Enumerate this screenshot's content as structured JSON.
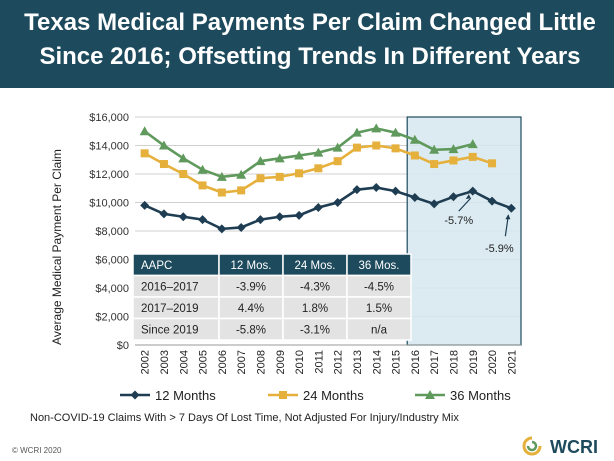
{
  "header": {
    "title_line1": "Texas Medical Payments Per Claim Changed Little",
    "title_line2": "Since 2016; Offsetting Trends In Different Years"
  },
  "colors": {
    "header_bg": "#1d4a5c",
    "series_12": "#1e3d52",
    "series_24": "#e6b03c",
    "series_36": "#5f9a5c",
    "highlight_fill": "#d6e8ee",
    "highlight_border": "#1d4a5c",
    "table_header_bg": "#1d4a5c",
    "table_row_bg": "#e3e3e3"
  },
  "chart_data": {
    "type": "line",
    "xlabel": "",
    "ylabel": "Average Medical Payment Per Claim",
    "ylim": [
      0,
      16000
    ],
    "yticks": [
      "$0",
      "$2,000",
      "$4,000",
      "$6,000",
      "$8,000",
      "$10,000",
      "$12,000",
      "$14,000",
      "$16,000"
    ],
    "x": [
      "2002",
      "2003",
      "2004",
      "2005",
      "2006",
      "2007",
      "2008",
      "2009",
      "2010",
      "2011",
      "2012",
      "2013",
      "2014",
      "2015",
      "2016",
      "2017",
      "2018",
      "2019",
      "2020",
      "2021"
    ],
    "highlight_range": [
      "2016",
      "2021"
    ],
    "series": [
      {
        "name": "12 Months",
        "key": "s12",
        "values": [
          9800,
          9200,
          9000,
          8800,
          8150,
          8250,
          8800,
          9000,
          9100,
          9650,
          10000,
          10900,
          11050,
          10800,
          10350,
          9900,
          10400,
          10800,
          10100,
          9600
        ]
      },
      {
        "name": "24 Months",
        "key": "s24",
        "values": [
          13450,
          12700,
          12000,
          11200,
          10700,
          10850,
          11700,
          11800,
          12050,
          12400,
          12900,
          13850,
          14000,
          13800,
          13300,
          12700,
          12950,
          13200,
          12750,
          null
        ]
      },
      {
        "name": "36 Months",
        "key": "s36",
        "values": [
          15000,
          14000,
          13100,
          12300,
          11800,
          11950,
          12900,
          13100,
          13300,
          13500,
          13850,
          14900,
          15200,
          14900,
          14400,
          13700,
          13750,
          14100,
          null,
          null
        ]
      }
    ],
    "annotations": [
      {
        "text": "-5.7%",
        "x": "2019"
      },
      {
        "text": "-5.9%",
        "x": "2021"
      }
    ]
  },
  "table": {
    "headers": [
      "AAPC",
      "12 Mos.",
      "24 Mos.",
      "36 Mos."
    ],
    "rows": [
      [
        "2016–2017",
        "-3.9%",
        "-4.3%",
        "-4.5%"
      ],
      [
        "2017–2019",
        "4.4%",
        "1.8%",
        "1.5%"
      ],
      [
        "Since 2019",
        "-5.8%",
        "-3.1%",
        "n/a"
      ]
    ]
  },
  "footnote": "Non-COVID-19 Claims With > 7 Days Of Lost Time, Not Adjusted For Injury/Industry Mix",
  "copyright": "© WCRI 2020",
  "logo": {
    "text": "WCRI"
  }
}
